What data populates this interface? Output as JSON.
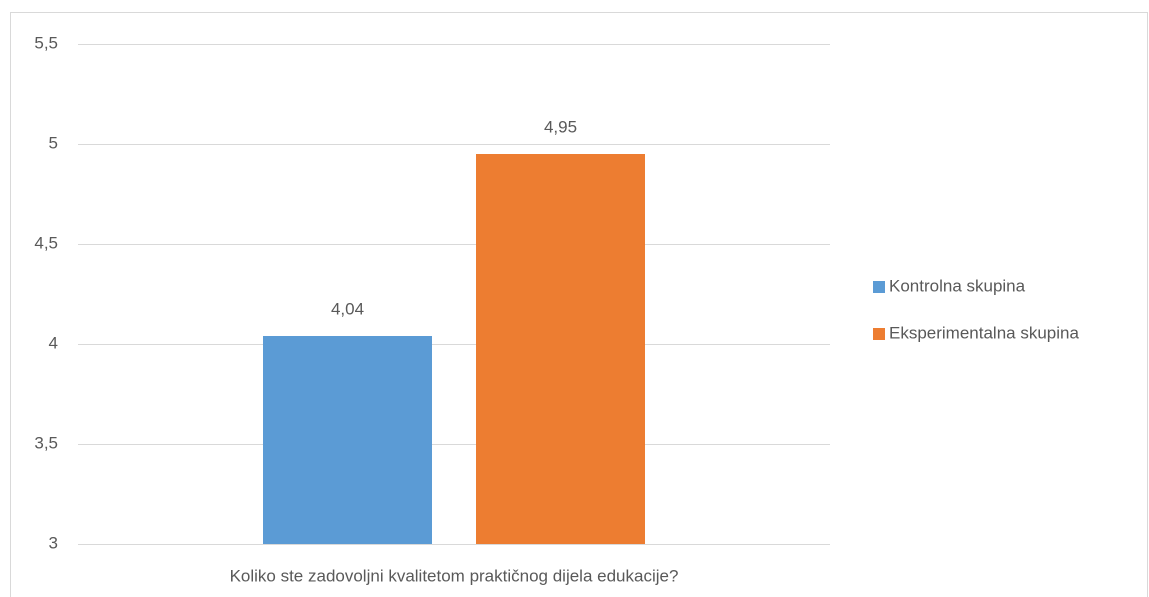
{
  "chart_data": {
    "type": "bar",
    "categories": [
      "Koliko ste zadovoljni kvalitetom praktičnog dijela edukacije?"
    ],
    "series": [
      {
        "name": "Kontrolna skupina",
        "color": "#5b9bd5",
        "values": [
          4.04
        ],
        "value_labels": [
          "4,04"
        ]
      },
      {
        "name": "Eksperimentalna skupina",
        "color": "#ed7d31",
        "values": [
          4.95
        ],
        "value_labels": [
          "4,95"
        ]
      }
    ],
    "ylim": [
      3,
      5.5
    ],
    "yticks": [
      3,
      {
        "value": 3.5,
        "label": "3,5"
      },
      4,
      {
        "value": 4.5,
        "label": "4,5"
      },
      5,
      {
        "value": 5.5,
        "label": "5,5"
      }
    ],
    "grid": true,
    "legend": "right"
  }
}
